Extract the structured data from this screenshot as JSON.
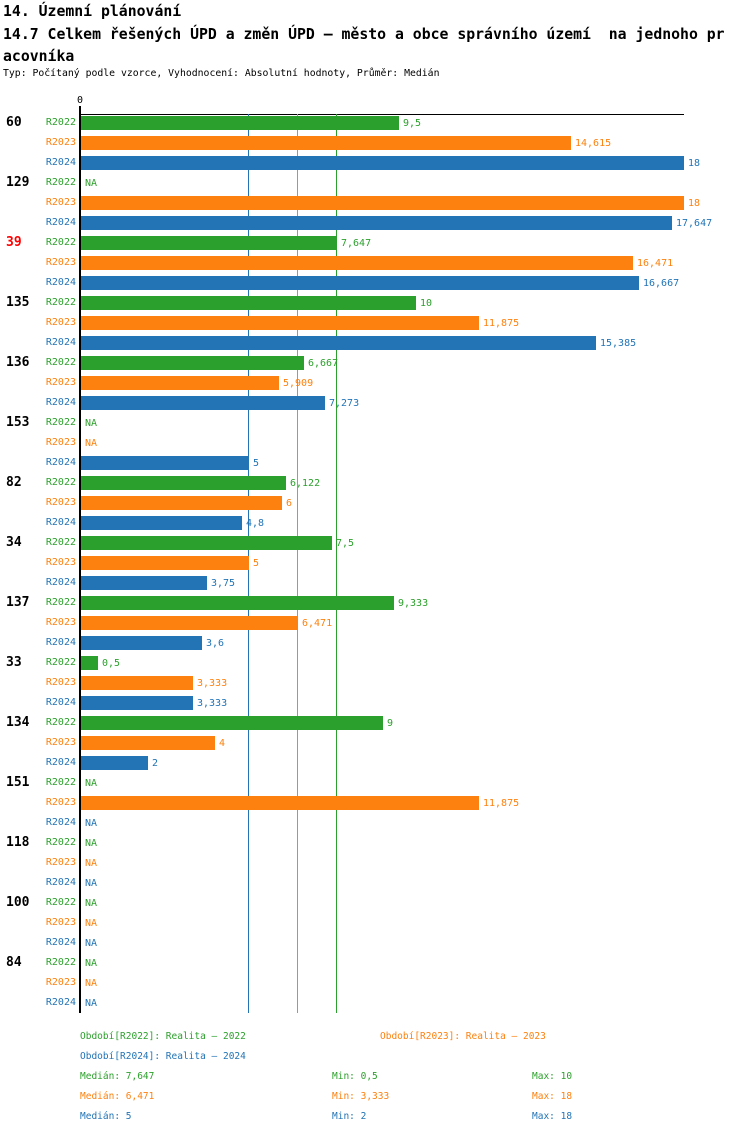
{
  "header": {
    "title": "14. Územní plánování",
    "subtitle": "14.7 Celkem řešených ÚPD a změn ÚPD – město a obce správního území  na jednoho pracovníka",
    "meta": "Typ: Počítaný podle vzorce, Vyhodnocení: Absolutní hodnoty, Průměr: Medián"
  },
  "chart_data": {
    "type": "bar",
    "orientation": "horizontal",
    "title": "14.7 Celkem řešených ÚPD a změn ÚPD – město a obce správního území na jednoho pracovníka",
    "xlabel": "",
    "ylabel": "",
    "xlim": [
      0,
      18
    ],
    "grid": false,
    "legend_position": "bottom",
    "axis": {
      "zero_label": "0"
    },
    "highlight_color": "#ff0000",
    "series": [
      {
        "name": "R2022",
        "period_label": "Období[R2022]: Realita – 2022",
        "color": "#2ca02c",
        "median": 7.647,
        "median_label": "7,647",
        "min": 0.5,
        "max": 10
      },
      {
        "name": "R2023",
        "period_label": "Období[R2023]: Realita – 2023",
        "color": "#fd810e",
        "median": 6.471,
        "median_label": "6,471",
        "min": 3.333,
        "max": 18
      },
      {
        "name": "R2024",
        "period_label": "Období[R2024]: Realita – 2024",
        "color": "#2274b5",
        "median": 5,
        "median_label": "5",
        "min": 2,
        "max": 18
      }
    ],
    "groups": [
      {
        "id": "60",
        "highlight": false,
        "values": [
          9.5,
          14.615,
          18
        ],
        "labels": [
          "9,5",
          "14,615",
          "18"
        ]
      },
      {
        "id": "129",
        "highlight": false,
        "values": [
          null,
          18,
          17.647
        ],
        "labels": [
          "NA",
          "18",
          "17,647"
        ]
      },
      {
        "id": "39",
        "highlight": true,
        "values": [
          7.647,
          16.471,
          16.667
        ],
        "labels": [
          "7,647",
          "16,471",
          "16,667"
        ]
      },
      {
        "id": "135",
        "highlight": false,
        "values": [
          10,
          11.875,
          15.385
        ],
        "labels": [
          "10",
          "11,875",
          "15,385"
        ]
      },
      {
        "id": "136",
        "highlight": false,
        "values": [
          6.667,
          5.909,
          7.273
        ],
        "labels": [
          "6,667",
          "5,909",
          "7,273"
        ]
      },
      {
        "id": "153",
        "highlight": false,
        "values": [
          null,
          null,
          5
        ],
        "labels": [
          "NA",
          "NA",
          "5"
        ]
      },
      {
        "id": "82",
        "highlight": false,
        "values": [
          6.122,
          6,
          4.8
        ],
        "labels": [
          "6,122",
          "6",
          "4,8"
        ]
      },
      {
        "id": "34",
        "highlight": false,
        "values": [
          7.5,
          5,
          3.75
        ],
        "labels": [
          "7,5",
          "5",
          "3,75"
        ]
      },
      {
        "id": "137",
        "highlight": false,
        "values": [
          9.333,
          6.471,
          3.6
        ],
        "labels": [
          "9,333",
          "6,471",
          "3,6"
        ]
      },
      {
        "id": "33",
        "highlight": false,
        "values": [
          0.5,
          3.333,
          3.333
        ],
        "labels": [
          "0,5",
          "3,333",
          "3,333"
        ]
      },
      {
        "id": "134",
        "highlight": false,
        "values": [
          9,
          4,
          2
        ],
        "labels": [
          "9",
          "4",
          "2"
        ]
      },
      {
        "id": "151",
        "highlight": false,
        "values": [
          null,
          11.875,
          null
        ],
        "labels": [
          "NA",
          "11,875",
          "NA"
        ]
      },
      {
        "id": "118",
        "highlight": false,
        "values": [
          null,
          null,
          null
        ],
        "labels": [
          "NA",
          "NA",
          "NA"
        ]
      },
      {
        "id": "100",
        "highlight": false,
        "values": [
          null,
          null,
          null
        ],
        "labels": [
          "NA",
          "NA",
          "NA"
        ]
      },
      {
        "id": "84",
        "highlight": false,
        "values": [
          null,
          null,
          null
        ],
        "labels": [
          "NA",
          "NA",
          "NA"
        ]
      }
    ]
  },
  "footer": {
    "legend": [
      {
        "text": "Období[R2022]: Realita – 2022",
        "color": "#2ca02c",
        "col": 0,
        "row": 0
      },
      {
        "text": "Období[R2023]: Realita – 2023",
        "color": "#fd810e",
        "col": 1,
        "row": 0
      },
      {
        "text": "Období[R2024]: Realita – 2024",
        "color": "#2274b5",
        "col": 0,
        "row": 1
      }
    ],
    "stats": [
      {
        "median": "Medián: 7,647",
        "min": "Min: 0,5",
        "max": "Max: 10",
        "color": "#2ca02c"
      },
      {
        "median": "Medián: 6,471",
        "min": "Min: 3,333",
        "max": "Max: 18",
        "color": "#fd810e"
      },
      {
        "median": "Medián: 5",
        "min": "Min: 2",
        "max": "Max: 18",
        "color": "#2274b5"
      }
    ]
  }
}
